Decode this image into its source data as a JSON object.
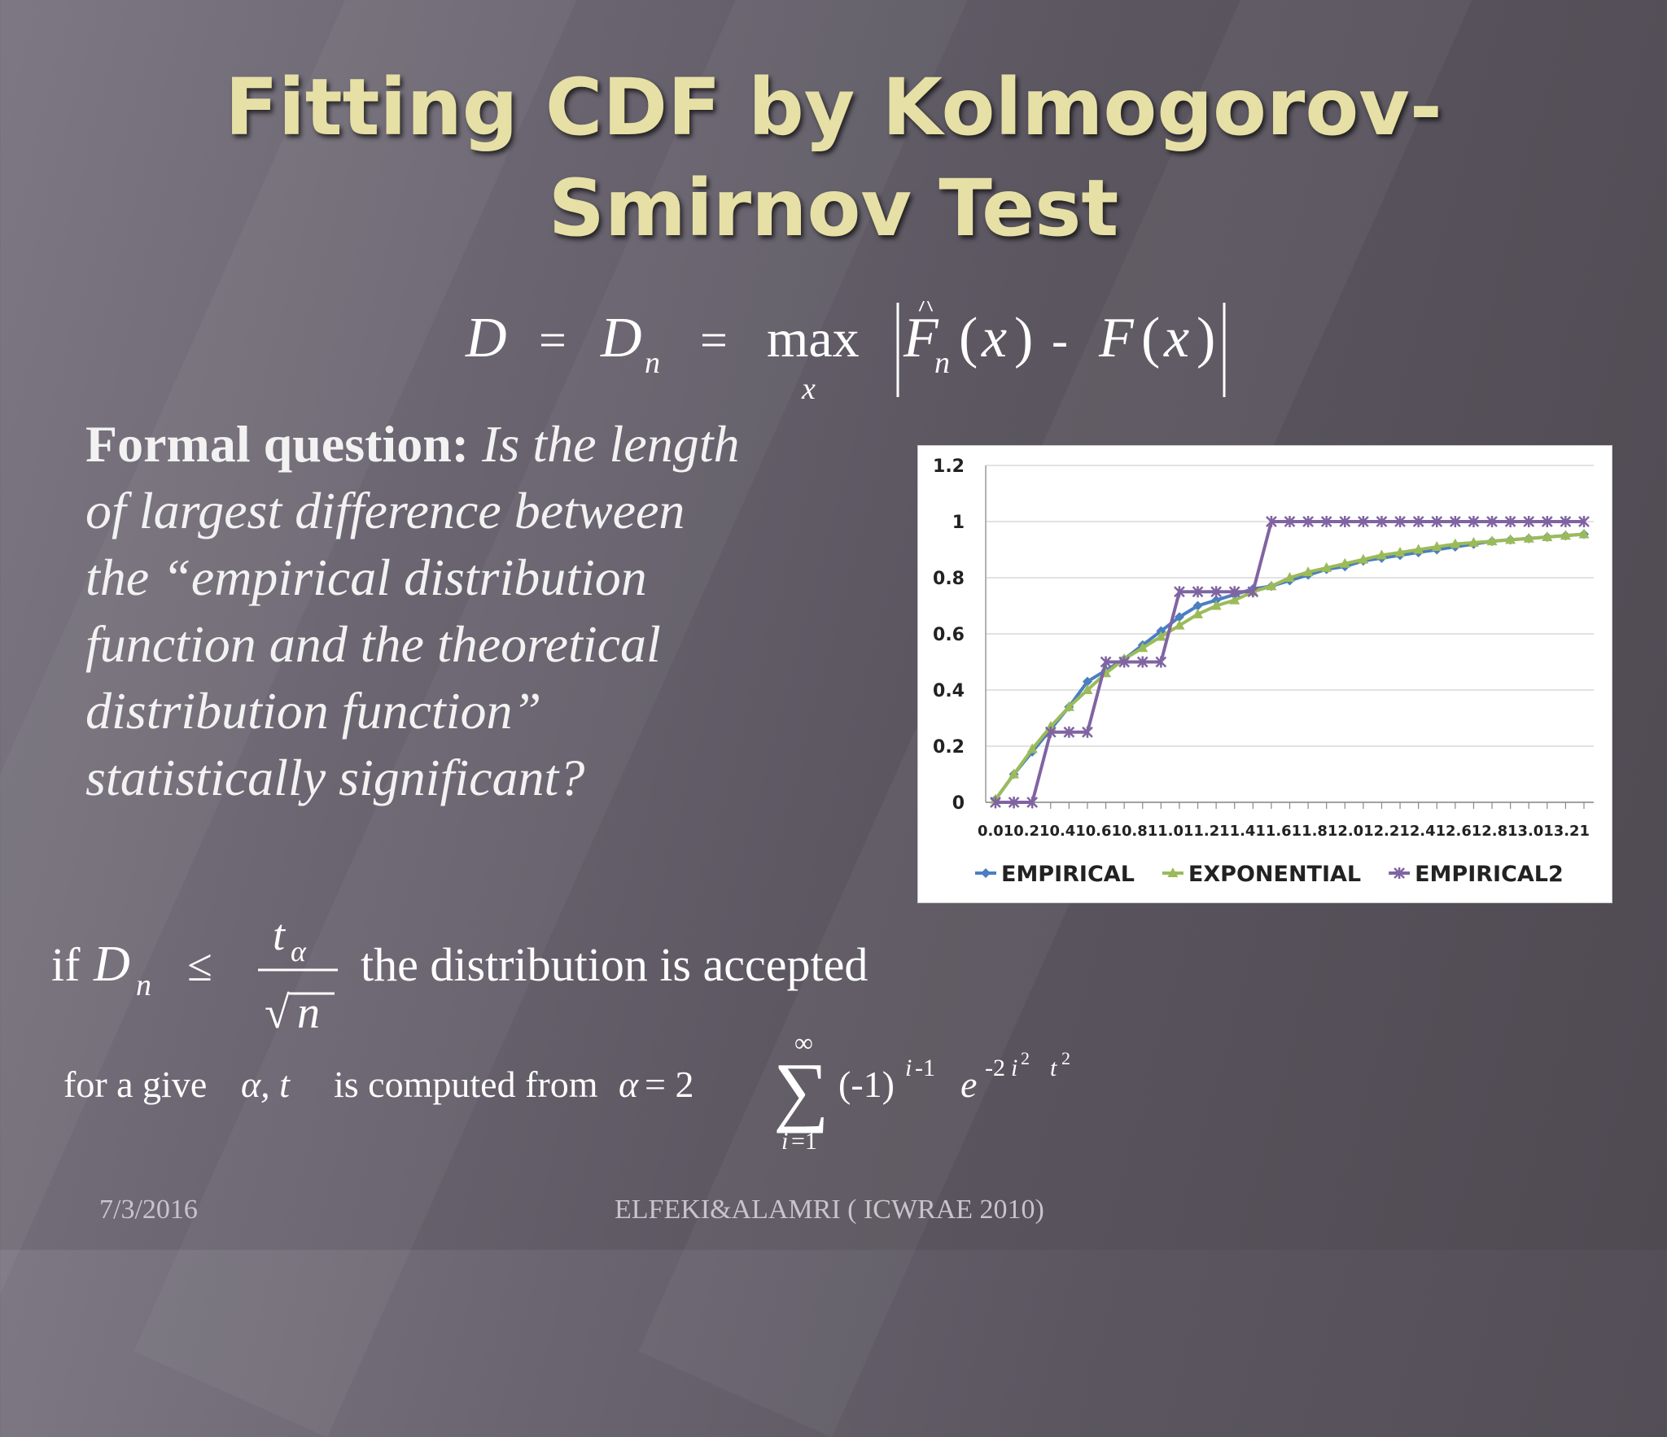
{
  "slide": {
    "title_line1": "Fitting CDF by Kolmogorov-",
    "title_line2": "Smirnov Test",
    "question_bold": "Formal question:",
    "question_italic": " Is the length of largest difference between the “empirical distribution function and the theoretical distribution function” statistically significant?",
    "accept_prefix": "if",
    "accept_text": "the distribution is accepted",
    "alpha_text": "for a give",
    "alpha_text2": "is computed from",
    "footer_date": "7/3/2016",
    "footer_credit": "ELFEKI&ALAMRI ( ICWRAE 2010)"
  },
  "colors": {
    "title": "#e6e0a6",
    "empirical": "#4a7fc1",
    "exponential": "#9bbb59",
    "empirical2": "#8064a2"
  },
  "chart_data": {
    "type": "line",
    "title": "",
    "xlabel": "",
    "ylabel": "",
    "ylim": [
      0,
      1.2
    ],
    "yticks": [
      0,
      0.2,
      0.4,
      0.6,
      0.8,
      1,
      1.2
    ],
    "ytick_labels": [
      "0",
      "0.2",
      "0.4",
      "0.6",
      "0.8",
      "1",
      "1.2"
    ],
    "x_axis_labels_text": "0.010.210.410.610.811.011.211.411.611.812.012.212.412.612.813.013.21",
    "x": [
      0.01,
      0.11,
      0.21,
      0.31,
      0.41,
      0.51,
      0.61,
      0.71,
      0.81,
      0.91,
      1.01,
      1.11,
      1.21,
      1.31,
      1.41,
      1.51,
      1.61,
      1.71,
      1.81,
      1.91,
      2.01,
      2.11,
      2.21,
      2.31,
      2.41,
      2.51,
      2.61,
      2.71,
      2.81,
      2.91,
      3.01,
      3.11,
      3.21
    ],
    "grid": "horizontal",
    "legend_position": "bottom",
    "series": [
      {
        "name": "EMPIRICAL",
        "marker": "diamond",
        "values": [
          0.01,
          0.1,
          0.18,
          0.26,
          0.34,
          0.43,
          0.47,
          0.51,
          0.56,
          0.61,
          0.66,
          0.7,
          0.72,
          0.74,
          0.76,
          0.77,
          0.79,
          0.81,
          0.83,
          0.84,
          0.86,
          0.87,
          0.88,
          0.89,
          0.9,
          0.91,
          0.92,
          0.93,
          0.935,
          0.94,
          0.945,
          0.95,
          0.955
        ]
      },
      {
        "name": "EXPONENTIAL",
        "marker": "triangle",
        "values": [
          0.01,
          0.1,
          0.19,
          0.27,
          0.34,
          0.4,
          0.46,
          0.51,
          0.55,
          0.59,
          0.63,
          0.67,
          0.7,
          0.72,
          0.75,
          0.77,
          0.8,
          0.82,
          0.835,
          0.85,
          0.865,
          0.88,
          0.89,
          0.9,
          0.91,
          0.92,
          0.925,
          0.93,
          0.935,
          0.94,
          0.945,
          0.95,
          0.955
        ]
      },
      {
        "name": "EMPIRICAL2",
        "marker": "star",
        "values": [
          0,
          0,
          0,
          0.25,
          0.25,
          0.25,
          0.5,
          0.5,
          0.5,
          0.5,
          0.75,
          0.75,
          0.75,
          0.75,
          0.75,
          1,
          1,
          1,
          1,
          1,
          1,
          1,
          1,
          1,
          1,
          1,
          1,
          1,
          1,
          1,
          1,
          1,
          1
        ]
      }
    ]
  }
}
